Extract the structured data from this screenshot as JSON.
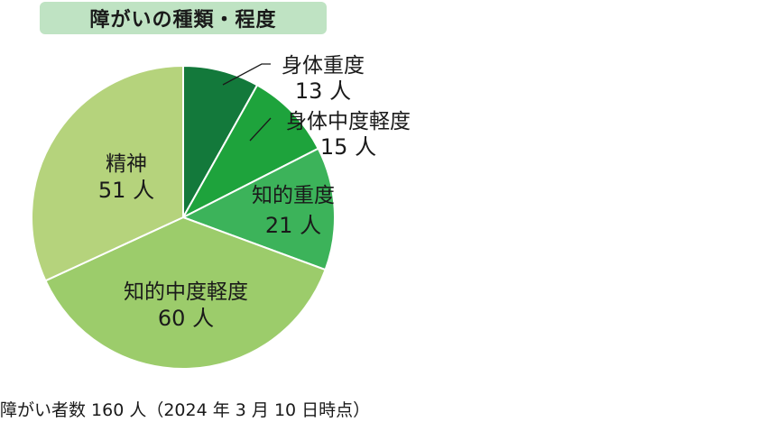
{
  "chart_data": {
    "type": "pie",
    "title": "障がいの種類・程度",
    "start_angle_deg": 0,
    "direction": "clockwise",
    "slices": [
      {
        "label": "身体重度",
        "value": 13,
        "value_text": "13 人",
        "color": "#13793b",
        "label_position": "outside"
      },
      {
        "label": "身体中度軽度",
        "value": 15,
        "value_text": "15 人",
        "color": "#1ea33c",
        "label_position": "outside"
      },
      {
        "label": "知的重度",
        "value": 21,
        "value_text": "21 人",
        "color": "#3cb35a",
        "label_position": "inside"
      },
      {
        "label": "知的中度軽度",
        "value": 60,
        "value_text": "60 人",
        "color": "#9ccc6b",
        "label_position": "inside"
      },
      {
        "label": "精神",
        "value": 51,
        "value_text": "51 人",
        "color": "#b5d37c",
        "label_position": "inside"
      }
    ]
  },
  "footnote": "障がい者数 160 人（2024 年 3 月 10 日時点）"
}
